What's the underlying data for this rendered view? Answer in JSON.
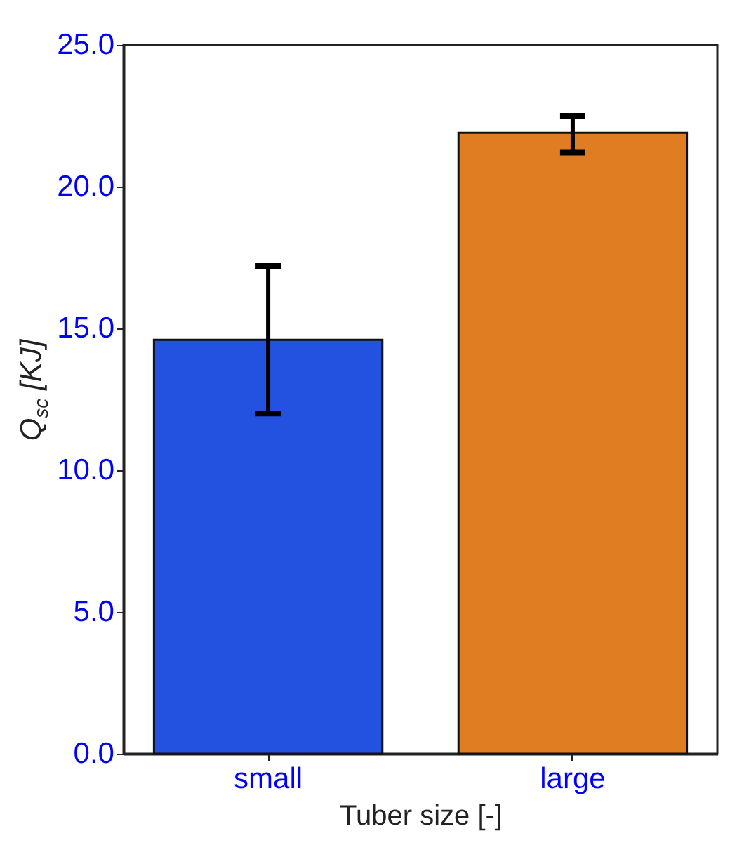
{
  "chart_data": {
    "type": "bar",
    "xlabel": "Tuber size [-]",
    "ylabel": "Q$_{sc}$ [KJ]",
    "categories": [
      "small",
      "large"
    ],
    "values": [
      14.6,
      21.9
    ],
    "colors": [
      "#2351e0",
      "#e07c22"
    ],
    "errors": [
      [
        12.0,
        17.2
      ],
      [
        21.2,
        22.5
      ]
    ],
    "ylim": [
      0,
      25
    ],
    "yticks": [
      {
        "value": 0,
        "label": "0.0"
      },
      {
        "value": 5,
        "label": "5.0"
      },
      {
        "value": 10,
        "label": "10.0"
      },
      {
        "value": 15,
        "label": "15.0"
      },
      {
        "value": 20,
        "label": "20.0"
      },
      {
        "value": 25,
        "label": "25.0"
      }
    ],
    "grid": false,
    "legend": false
  }
}
